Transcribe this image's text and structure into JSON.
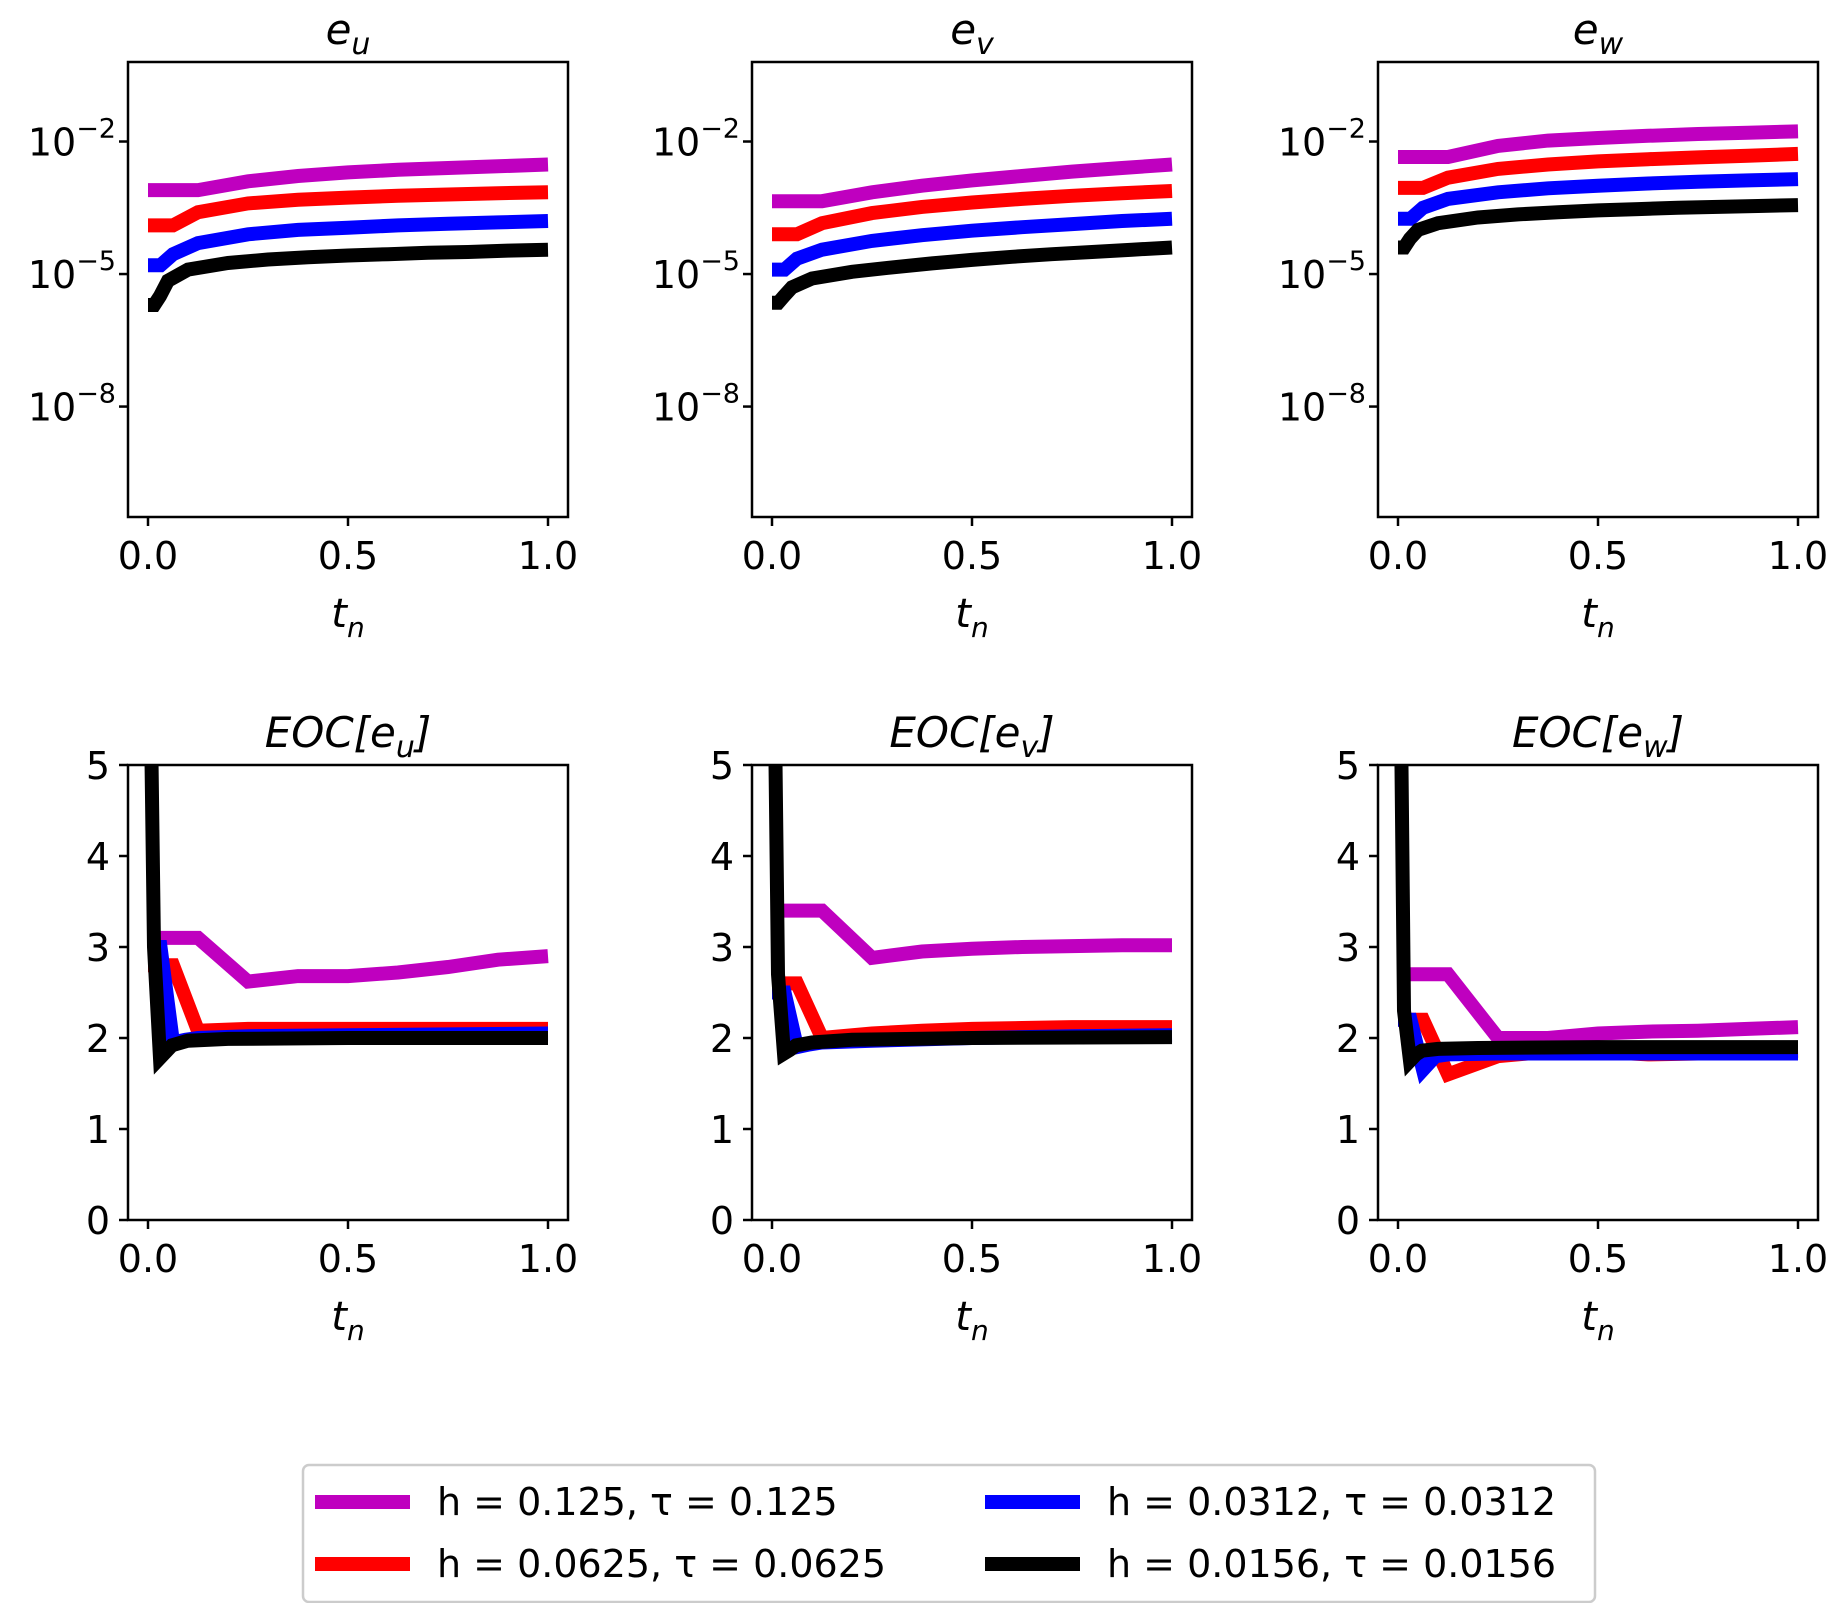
{
  "legend": [
    {
      "key": "s1",
      "label": "h = 0.125, τ = 0.125",
      "color": "#bf00bf"
    },
    {
      "key": "s2",
      "label": "h = 0.0625, τ = 0.0625",
      "color": "#ff0000"
    },
    {
      "key": "s3",
      "label": "h = 0.0312, τ = 0.0312",
      "color": "#0000ff"
    },
    {
      "key": "s4",
      "label": "h = 0.0156, τ = 0.0156",
      "color": "#000000"
    }
  ],
  "chart_data": [
    {
      "id": "eu",
      "type": "line",
      "yscale": "log",
      "title": {
        "main": "e",
        "sub": "u"
      },
      "xlabel": {
        "main": "t",
        "sub": "n"
      },
      "xlim": [
        -0.05,
        1.05
      ],
      "ylim_log10": [
        -10.5,
        -0.2
      ],
      "xticks": [
        {
          "value": 0.0,
          "label": "0.0"
        },
        {
          "value": 0.5,
          "label": "0.5"
        },
        {
          "value": 1.0,
          "label": "1.0"
        }
      ],
      "yticks": [
        {
          "value": -2,
          "label": "10",
          "exp": "−2"
        },
        {
          "value": -5,
          "label": "10",
          "exp": "−5"
        },
        {
          "value": -8,
          "label": "10",
          "exp": "−8"
        }
      ],
      "series": [
        {
          "key": "s1",
          "x": [
            0,
            0.125,
            0.25,
            0.375,
            0.5,
            0.625,
            0.75,
            0.875,
            1.0
          ],
          "y_log10": [
            -3.1,
            -3.1,
            -2.9,
            -2.78,
            -2.7,
            -2.64,
            -2.6,
            -2.56,
            -2.52
          ]
        },
        {
          "key": "s2",
          "x": [
            0,
            0.0625,
            0.125,
            0.25,
            0.375,
            0.5,
            0.625,
            0.75,
            0.875,
            1.0
          ],
          "y_log10": [
            -3.9,
            -3.9,
            -3.6,
            -3.4,
            -3.32,
            -3.27,
            -3.23,
            -3.2,
            -3.17,
            -3.15
          ]
        },
        {
          "key": "s3",
          "x": [
            0,
            0.03125,
            0.0625,
            0.125,
            0.25,
            0.375,
            0.5,
            0.625,
            0.75,
            0.875,
            1.0
          ],
          "y_log10": [
            -4.8,
            -4.8,
            -4.55,
            -4.3,
            -4.1,
            -4.0,
            -3.95,
            -3.9,
            -3.86,
            -3.83,
            -3.8
          ]
        },
        {
          "key": "s4",
          "x": [
            0,
            0.0156,
            0.03,
            0.05,
            0.1,
            0.2,
            0.3,
            0.4,
            0.5,
            0.6,
            0.7,
            0.8,
            0.9,
            1.0
          ],
          "y_log10": [
            -5.7,
            -5.7,
            -5.5,
            -5.15,
            -4.9,
            -4.75,
            -4.67,
            -4.62,
            -4.58,
            -4.55,
            -4.52,
            -4.5,
            -4.47,
            -4.45
          ]
        }
      ]
    },
    {
      "id": "ev",
      "type": "line",
      "yscale": "log",
      "title": {
        "main": "e",
        "sub": "v"
      },
      "xlabel": {
        "main": "t",
        "sub": "n"
      },
      "xlim": [
        -0.05,
        1.05
      ],
      "ylim_log10": [
        -10.5,
        -0.2
      ],
      "xticks": [
        {
          "value": 0.0,
          "label": "0.0"
        },
        {
          "value": 0.5,
          "label": "0.5"
        },
        {
          "value": 1.0,
          "label": "1.0"
        }
      ],
      "yticks": [
        {
          "value": -2,
          "label": "10",
          "exp": "−2"
        },
        {
          "value": -5,
          "label": "10",
          "exp": "−5"
        },
        {
          "value": -8,
          "label": "10",
          "exp": "−8"
        }
      ],
      "series": [
        {
          "key": "s1",
          "x": [
            0,
            0.125,
            0.25,
            0.375,
            0.5,
            0.625,
            0.75,
            0.875,
            1.0
          ],
          "y_log10": [
            -3.35,
            -3.35,
            -3.15,
            -3.0,
            -2.88,
            -2.78,
            -2.68,
            -2.6,
            -2.52
          ]
        },
        {
          "key": "s2",
          "x": [
            0,
            0.0625,
            0.125,
            0.25,
            0.375,
            0.5,
            0.625,
            0.75,
            0.875,
            1.0
          ],
          "y_log10": [
            -4.1,
            -4.1,
            -3.85,
            -3.62,
            -3.48,
            -3.38,
            -3.3,
            -3.23,
            -3.17,
            -3.12
          ]
        },
        {
          "key": "s3",
          "x": [
            0,
            0.03125,
            0.0625,
            0.125,
            0.25,
            0.375,
            0.5,
            0.625,
            0.75,
            0.875,
            1.0
          ],
          "y_log10": [
            -4.9,
            -4.9,
            -4.65,
            -4.45,
            -4.25,
            -4.12,
            -4.02,
            -3.94,
            -3.87,
            -3.8,
            -3.75
          ]
        },
        {
          "key": "s4",
          "x": [
            0,
            0.0156,
            0.03,
            0.05,
            0.1,
            0.2,
            0.3,
            0.4,
            0.5,
            0.6,
            0.7,
            0.8,
            0.9,
            1.0
          ],
          "y_log10": [
            -5.65,
            -5.65,
            -5.5,
            -5.3,
            -5.1,
            -4.95,
            -4.85,
            -4.76,
            -4.68,
            -4.61,
            -4.55,
            -4.5,
            -4.45,
            -4.4
          ]
        }
      ]
    },
    {
      "id": "ew",
      "type": "line",
      "yscale": "log",
      "title": {
        "main": "e",
        "sub": "w"
      },
      "xlabel": {
        "main": "t",
        "sub": "n"
      },
      "xlim": [
        -0.05,
        1.05
      ],
      "ylim_log10": [
        -10.5,
        -0.2
      ],
      "xticks": [
        {
          "value": 0.0,
          "label": "0.0"
        },
        {
          "value": 0.5,
          "label": "0.5"
        },
        {
          "value": 1.0,
          "label": "1.0"
        }
      ],
      "yticks": [
        {
          "value": -2,
          "label": "10",
          "exp": "−2"
        },
        {
          "value": -5,
          "label": "10",
          "exp": "−5"
        },
        {
          "value": -8,
          "label": "10",
          "exp": "−8"
        }
      ],
      "series": [
        {
          "key": "s1",
          "x": [
            0,
            0.125,
            0.25,
            0.375,
            0.5,
            0.625,
            0.75,
            0.875,
            1.0
          ],
          "y_log10": [
            -2.35,
            -2.35,
            -2.1,
            -1.98,
            -1.92,
            -1.87,
            -1.83,
            -1.8,
            -1.77
          ]
        },
        {
          "key": "s2",
          "x": [
            0,
            0.0625,
            0.125,
            0.25,
            0.375,
            0.5,
            0.625,
            0.75,
            0.875,
            1.0
          ],
          "y_log10": [
            -3.05,
            -3.05,
            -2.82,
            -2.62,
            -2.52,
            -2.45,
            -2.4,
            -2.36,
            -2.32,
            -2.28
          ]
        },
        {
          "key": "s3",
          "x": [
            0,
            0.03125,
            0.0625,
            0.125,
            0.25,
            0.375,
            0.5,
            0.625,
            0.75,
            0.875,
            1.0
          ],
          "y_log10": [
            -3.75,
            -3.75,
            -3.5,
            -3.3,
            -3.15,
            -3.06,
            -3.0,
            -2.95,
            -2.91,
            -2.88,
            -2.85
          ]
        },
        {
          "key": "s4",
          "x": [
            0,
            0.0156,
            0.03,
            0.05,
            0.1,
            0.2,
            0.3,
            0.4,
            0.5,
            0.6,
            0.7,
            0.8,
            0.9,
            1.0
          ],
          "y_log10": [
            -4.4,
            -4.4,
            -4.2,
            -4.0,
            -3.85,
            -3.72,
            -3.65,
            -3.6,
            -3.56,
            -3.53,
            -3.5,
            -3.48,
            -3.46,
            -3.44
          ]
        }
      ]
    },
    {
      "id": "eoc_eu",
      "type": "line",
      "yscale": "linear",
      "title": {
        "main": "EOC[e",
        "sub": "u",
        "after": "]"
      },
      "xlabel": {
        "main": "t",
        "sub": "n"
      },
      "xlim": [
        -0.05,
        1.05
      ],
      "ylim": [
        0,
        5
      ],
      "xticks": [
        {
          "value": 0.0,
          "label": "0.0"
        },
        {
          "value": 0.5,
          "label": "0.5"
        },
        {
          "value": 1.0,
          "label": "1.0"
        }
      ],
      "yticks": [
        {
          "value": 0,
          "label": "0"
        },
        {
          "value": 1,
          "label": "1"
        },
        {
          "value": 2,
          "label": "2"
        },
        {
          "value": 3,
          "label": "3"
        },
        {
          "value": 4,
          "label": "4"
        },
        {
          "value": 5,
          "label": "5"
        }
      ],
      "series": [
        {
          "key": "s1",
          "x": [
            0,
            0.125,
            0.25,
            0.375,
            0.5,
            0.625,
            0.75,
            0.875,
            1.0
          ],
          "y": [
            3.1,
            3.1,
            2.62,
            2.68,
            2.68,
            2.72,
            2.78,
            2.86,
            2.9
          ]
        },
        {
          "key": "s2",
          "x": [
            0,
            0.0625,
            0.125,
            0.25,
            0.375,
            0.5,
            0.625,
            0.75,
            0.875,
            1.0
          ],
          "y": [
            2.8,
            2.8,
            2.08,
            2.1,
            2.1,
            2.1,
            2.1,
            2.1,
            2.1,
            2.1
          ]
        },
        {
          "key": "s3",
          "x": [
            0,
            0.03125,
            0.0625,
            0.09375,
            0.125,
            0.25,
            0.5,
            0.75,
            1.0
          ],
          "y": [
            3.0,
            3.0,
            1.95,
            1.98,
            2.0,
            2.02,
            2.03,
            2.04,
            2.05
          ]
        },
        {
          "key": "s4",
          "x": [
            0,
            0.008,
            0.015,
            0.03,
            0.045,
            0.06,
            0.1,
            0.2,
            0.5,
            1.0
          ],
          "y": [
            5.3,
            5.3,
            3.0,
            1.78,
            1.85,
            1.92,
            1.97,
            1.99,
            2.0,
            2.0
          ]
        }
      ]
    },
    {
      "id": "eoc_ev",
      "type": "line",
      "yscale": "linear",
      "title": {
        "main": "EOC[e",
        "sub": "v",
        "after": "]"
      },
      "xlabel": {
        "main": "t",
        "sub": "n"
      },
      "xlim": [
        -0.05,
        1.05
      ],
      "ylim": [
        0,
        5
      ],
      "xticks": [
        {
          "value": 0.0,
          "label": "0.0"
        },
        {
          "value": 0.5,
          "label": "0.5"
        },
        {
          "value": 1.0,
          "label": "1.0"
        }
      ],
      "yticks": [
        {
          "value": 0,
          "label": "0"
        },
        {
          "value": 1,
          "label": "1"
        },
        {
          "value": 2,
          "label": "2"
        },
        {
          "value": 3,
          "label": "3"
        },
        {
          "value": 4,
          "label": "4"
        },
        {
          "value": 5,
          "label": "5"
        }
      ],
      "series": [
        {
          "key": "s1",
          "x": [
            0,
            0.125,
            0.25,
            0.375,
            0.5,
            0.625,
            0.75,
            0.875,
            1.0
          ],
          "y": [
            3.4,
            3.4,
            2.88,
            2.95,
            2.98,
            3.0,
            3.01,
            3.02,
            3.02
          ]
        },
        {
          "key": "s2",
          "x": [
            0,
            0.0625,
            0.125,
            0.25,
            0.375,
            0.5,
            0.625,
            0.75,
            0.875,
            1.0
          ],
          "y": [
            2.6,
            2.6,
            2.0,
            2.05,
            2.08,
            2.1,
            2.11,
            2.12,
            2.12,
            2.12
          ]
        },
        {
          "key": "s3",
          "x": [
            0,
            0.03125,
            0.0625,
            0.09375,
            0.125,
            0.25,
            0.5,
            0.75,
            1.0
          ],
          "y": [
            2.5,
            2.5,
            1.9,
            1.93,
            1.95,
            1.97,
            2.0,
            2.02,
            2.03
          ]
        },
        {
          "key": "s4",
          "x": [
            0,
            0.008,
            0.015,
            0.03,
            0.045,
            0.06,
            0.1,
            0.2,
            0.5,
            1.0
          ],
          "y": [
            5.3,
            5.3,
            2.7,
            1.83,
            1.87,
            1.92,
            1.95,
            1.98,
            2.0,
            2.01
          ]
        }
      ]
    },
    {
      "id": "eoc_ew",
      "type": "line",
      "yscale": "linear",
      "title": {
        "main": "EOC[e",
        "sub": "w",
        "after": "]"
      },
      "xlabel": {
        "main": "t",
        "sub": "n"
      },
      "xlim": [
        -0.05,
        1.05
      ],
      "ylim": [
        0,
        5
      ],
      "xticks": [
        {
          "value": 0.0,
          "label": "0.0"
        },
        {
          "value": 0.5,
          "label": "0.5"
        },
        {
          "value": 1.0,
          "label": "1.0"
        }
      ],
      "yticks": [
        {
          "value": 0,
          "label": "0"
        },
        {
          "value": 1,
          "label": "1"
        },
        {
          "value": 2,
          "label": "2"
        },
        {
          "value": 3,
          "label": "3"
        },
        {
          "value": 4,
          "label": "4"
        },
        {
          "value": 5,
          "label": "5"
        }
      ],
      "series": [
        {
          "key": "s1",
          "x": [
            0,
            0.125,
            0.25,
            0.375,
            0.5,
            0.625,
            0.75,
            0.875,
            1.0
          ],
          "y": [
            2.7,
            2.7,
            2.0,
            2.0,
            2.05,
            2.07,
            2.08,
            2.1,
            2.12
          ]
        },
        {
          "key": "s2",
          "x": [
            0,
            0.0625,
            0.125,
            0.25,
            0.375,
            0.5,
            0.625,
            0.75,
            0.875,
            1.0
          ],
          "y": [
            2.2,
            2.2,
            1.6,
            1.8,
            1.85,
            1.85,
            1.82,
            1.83,
            1.85,
            1.86
          ]
        },
        {
          "key": "s3",
          "x": [
            0,
            0.03125,
            0.0625,
            0.09375,
            0.125,
            0.25,
            0.5,
            0.75,
            1.0
          ],
          "y": [
            2.2,
            2.2,
            1.65,
            1.8,
            1.82,
            1.83,
            1.83,
            1.83,
            1.83
          ]
        },
        {
          "key": "s4",
          "x": [
            0,
            0.008,
            0.015,
            0.03,
            0.045,
            0.06,
            0.1,
            0.2,
            0.5,
            1.0
          ],
          "y": [
            5.3,
            5.3,
            2.3,
            1.75,
            1.82,
            1.86,
            1.88,
            1.89,
            1.9,
            1.9
          ]
        }
      ]
    }
  ]
}
